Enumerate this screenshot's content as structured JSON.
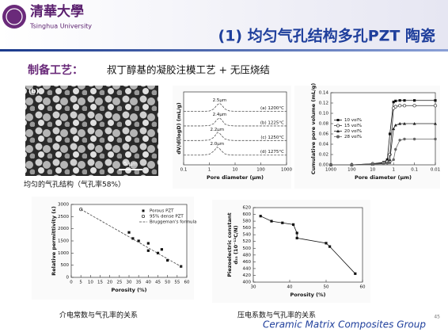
{
  "header": {
    "logo_cn": "清華大學",
    "logo_en": "Tsinghua University",
    "title": "(1) 均匀气孔结构多孔PZT 陶瓷"
  },
  "process": {
    "label": "制备工艺：",
    "text": "叔丁醇基的凝胶注模工艺 + 无压烧结"
  },
  "sem_image": {
    "label": "(b)",
    "scale_bar": "5 μm",
    "caption": "均匀的气孔结构（气孔率58%）"
  },
  "captions": [
    "介电常数与气孔率的关系",
    "压电系数与气孔率的关系"
  ],
  "footer": {
    "group": "Ceramic Matrix Composites Group",
    "page": "45"
  },
  "chart_data": [
    {
      "type": "line",
      "x_label": "Pore diameter (μm)",
      "y_label": "dV/d(logD) (mL/g)",
      "xlog": true,
      "xlim": [
        0.1,
        1000
      ],
      "xticks": [
        0.1,
        1,
        10,
        100,
        1000
      ],
      "ylim": [
        0,
        4.5
      ],
      "legend": "inline",
      "x": [
        0.1,
        0.5,
        1,
        1.5,
        2,
        2.5,
        3,
        4,
        6,
        10,
        100,
        1000
      ],
      "series": [
        {
          "name": "(a) 1200°C",
          "peak_label": "2.5μm",
          "color": "#555555",
          "dash": true,
          "values": [
            3.3,
            3.3,
            3.32,
            3.45,
            3.7,
            3.8,
            3.7,
            3.45,
            3.33,
            3.3,
            3.3,
            3.3
          ]
        },
        {
          "name": "(b) 1225°C",
          "peak_label": "2.4μm",
          "color": "#555555",
          "dash": true,
          "values": [
            2.4,
            2.4,
            2.42,
            2.55,
            2.8,
            2.9,
            2.78,
            2.52,
            2.42,
            2.4,
            2.4,
            2.4
          ]
        },
        {
          "name": "(c) 1250°C",
          "peak_label": "2.2μm",
          "color": "#555555",
          "dash": true,
          "values": [
            1.5,
            1.5,
            1.53,
            1.7,
            1.98,
            1.95,
            1.8,
            1.6,
            1.52,
            1.5,
            1.5,
            1.5
          ]
        },
        {
          "name": "(d) 1275°C",
          "peak_label": "2.0μm",
          "color": "#555555",
          "dash": true,
          "values": [
            0.6,
            0.6,
            0.65,
            0.85,
            1.1,
            1.0,
            0.85,
            0.68,
            0.61,
            0.6,
            0.6,
            0.6
          ]
        }
      ]
    },
    {
      "type": "line",
      "x_label": "Pore diameter (μm)",
      "y_label": "Cumulative pore volume (mL/g)",
      "xlog": true,
      "xlim": [
        1000,
        0.01
      ],
      "xticks": [
        1000,
        100,
        10,
        1,
        0.1,
        0.01
      ],
      "ylim": [
        0,
        0.14
      ],
      "yticks": [
        {
          "value": 0,
          "label": "0.00"
        },
        {
          "value": 0.02,
          "label": "0.02"
        },
        {
          "value": 0.04,
          "label": "0.04"
        },
        {
          "value": 0.06,
          "label": "0.06"
        },
        {
          "value": 0.08,
          "label": "0.08"
        },
        {
          "value": 0.1,
          "label": "0.10"
        },
        {
          "value": 0.12,
          "label": "0.12"
        },
        {
          "value": 0.14,
          "label": "0.14"
        }
      ],
      "legend": "center left",
      "x": [
        1000,
        100,
        10,
        3,
        2,
        1.5,
        1,
        0.8,
        0.5,
        0.3,
        0.1,
        0.01
      ],
      "series": [
        {
          "name": "10 vol%",
          "color": "#111111",
          "marker": "square",
          "values": [
            0,
            0,
            0.002,
            0.005,
            0.01,
            0.06,
            0.122,
            0.124,
            0.125,
            0.125,
            0.125,
            0.125
          ]
        },
        {
          "name": "15 vol%",
          "color": "#333333",
          "marker": "open-circle",
          "values": [
            0,
            0,
            0.002,
            0.004,
            0.006,
            0.02,
            0.11,
            0.113,
            0.115,
            0.115,
            0.115,
            0.115
          ]
        },
        {
          "name": "20 vol%",
          "color": "#222222",
          "marker": "triangle",
          "values": [
            0,
            0,
            0.001,
            0.003,
            0.004,
            0.01,
            0.07,
            0.077,
            0.08,
            0.08,
            0.08,
            0.08
          ]
        },
        {
          "name": "28 vol%",
          "color": "#666666",
          "marker": "circle",
          "values": [
            0,
            0,
            0.001,
            0.002,
            0.003,
            0.004,
            0.01,
            0.03,
            0.048,
            0.05,
            0.05,
            0.05
          ]
        }
      ]
    },
    {
      "type": "scatter",
      "x_label": "Porosity (%)",
      "y_label": "Relative permittivity (ε)",
      "xlim": [
        0,
        60
      ],
      "xticks": [
        0,
        5,
        10,
        15,
        20,
        25,
        30,
        35,
        40,
        45,
        50,
        55,
        60
      ],
      "ylim": [
        0,
        3000
      ],
      "yticks": [
        0,
        500,
        1000,
        1500,
        2000,
        2500,
        3000
      ],
      "legend": "upper right",
      "series": [
        {
          "name": "Porous PZT",
          "color": "#111111",
          "marker": "square",
          "x": [
            30,
            32,
            35,
            40,
            40,
            45,
            47,
            50,
            57
          ],
          "values": [
            1850,
            1600,
            1500,
            1400,
            1100,
            1000,
            1150,
            700,
            450
          ]
        },
        {
          "name": "95% dense PZT",
          "color": "#111111",
          "marker": "open-circle",
          "x": [
            5
          ],
          "values": [
            2800
          ]
        },
        {
          "name": "Bruggeman's formula",
          "color": "#444444",
          "dash": true,
          "line": true,
          "x": [
            5,
            58
          ],
          "values": [
            2800,
            400
          ]
        }
      ]
    },
    {
      "type": "line",
      "x_label": "Porosity (%)",
      "y_label": [
        "Piezoelectric constant",
        "d₃₃ (10⁻¹²C/N)"
      ],
      "xlim": [
        30,
        60
      ],
      "xticks": [
        30,
        40,
        50,
        60
      ],
      "ylim": [
        400,
        620
      ],
      "yticks": [
        400,
        420,
        440,
        460,
        480,
        500,
        520,
        540,
        560,
        580,
        600,
        620
      ],
      "series": [
        {
          "color": "#111111",
          "marker": "square",
          "x": [
            32,
            35,
            38,
            41,
            42,
            42,
            50,
            51,
            58
          ],
          "values": [
            595,
            580,
            575,
            570,
            545,
            530,
            515,
            505,
            425
          ]
        }
      ]
    }
  ]
}
